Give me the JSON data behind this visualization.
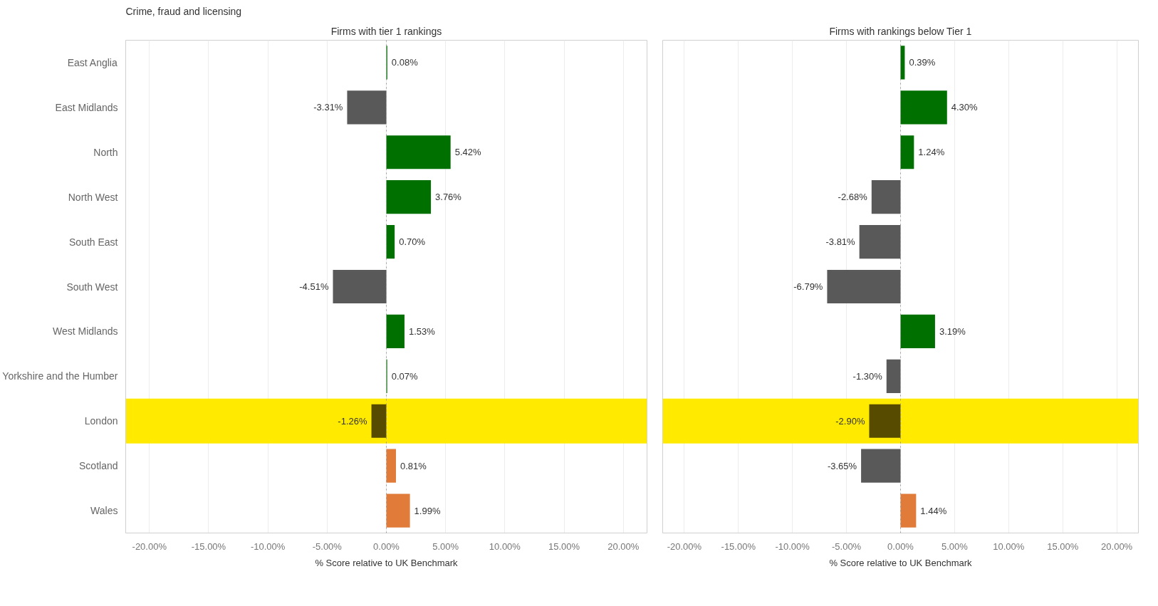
{
  "chart_data": [
    {
      "type": "bar",
      "orientation": "horizontal",
      "title": "Crime, fraud and licensing",
      "subtitle": "Firms with tier 1 rankings",
      "xlabel": "% Score relative to UK Benchmark",
      "categories": [
        "East Anglia",
        "East Midlands",
        "North",
        "North West",
        "South East",
        "South West",
        "West Midlands",
        "Yorkshire and the Humber",
        "London",
        "Scotland",
        "Wales"
      ],
      "values": [
        0.08,
        -3.31,
        5.42,
        3.76,
        0.7,
        -4.51,
        1.53,
        0.07,
        -1.26,
        0.81,
        1.99
      ],
      "colors": [
        "#007000",
        "#595959",
        "#007000",
        "#007000",
        "#007000",
        "#595959",
        "#007000",
        "#007000",
        "#574b00",
        "#e07b39",
        "#e07b39"
      ],
      "value_labels": [
        "0.08%",
        "-3.31%",
        "5.42%",
        "3.76%",
        "0.70%",
        "-4.51%",
        "1.53%",
        "0.07%",
        "-1.26%",
        "0.81%",
        "1.99%"
      ],
      "xlim": [
        -22,
        22
      ],
      "xticks": [
        {
          "value": -20,
          "label": "-20.00%"
        },
        {
          "value": -15,
          "label": "-15.00%"
        },
        {
          "value": -10,
          "label": "-10.00%"
        },
        {
          "value": -5,
          "label": "-5.00%"
        },
        {
          "value": 0,
          "label": "0.00%"
        },
        {
          "value": 5,
          "label": "5.00%"
        },
        {
          "value": 10,
          "label": "10.00%"
        },
        {
          "value": 15,
          "label": "15.00%"
        },
        {
          "value": 20,
          "label": "20.00%"
        }
      ],
      "grid": "x",
      "bands": [
        {
          "axis": "y",
          "from": "London",
          "to": "London",
          "color": "#ffea00"
        }
      ],
      "ref_lines": [
        {
          "axis": "x",
          "value": 0,
          "color": "#999999",
          "line_style": "dotted"
        }
      ]
    },
    {
      "type": "bar",
      "orientation": "horizontal",
      "subtitle": "Firms with rankings below Tier 1",
      "xlabel": "% Score relative to UK Benchmark",
      "categories": [
        "East Anglia",
        "East Midlands",
        "North",
        "North West",
        "South East",
        "South West",
        "West Midlands",
        "Yorkshire and the Humber",
        "London",
        "Scotland",
        "Wales"
      ],
      "values": [
        0.39,
        4.3,
        1.24,
        -2.68,
        -3.81,
        -6.79,
        3.19,
        -1.3,
        -2.9,
        -3.65,
        1.44
      ],
      "colors": [
        "#007000",
        "#007000",
        "#007000",
        "#595959",
        "#595959",
        "#595959",
        "#007000",
        "#595959",
        "#574b00",
        "#595959",
        "#e07b39"
      ],
      "value_labels": [
        "0.39%",
        "4.30%",
        "1.24%",
        "-2.68%",
        "-3.81%",
        "-6.79%",
        "3.19%",
        "-1.30%",
        "-2.90%",
        "-3.65%",
        "1.44%"
      ],
      "xlim": [
        -22,
        22
      ],
      "xticks": [
        {
          "value": -20,
          "label": "-20.00%"
        },
        {
          "value": -15,
          "label": "-15.00%"
        },
        {
          "value": -10,
          "label": "-10.00%"
        },
        {
          "value": -5,
          "label": "-5.00%"
        },
        {
          "value": 0,
          "label": "0.00%"
        },
        {
          "value": 5,
          "label": "5.00%"
        },
        {
          "value": 10,
          "label": "10.00%"
        },
        {
          "value": 15,
          "label": "15.00%"
        },
        {
          "value": 20,
          "label": "20.00%"
        }
      ],
      "grid": "x",
      "tick_labels": "x",
      "bands": [
        {
          "axis": "y",
          "from": "London",
          "to": "London",
          "color": "#ffea00"
        }
      ],
      "ref_lines": [
        {
          "axis": "x",
          "value": 0,
          "color": "#999999",
          "line_style": "dotted"
        }
      ]
    }
  ]
}
